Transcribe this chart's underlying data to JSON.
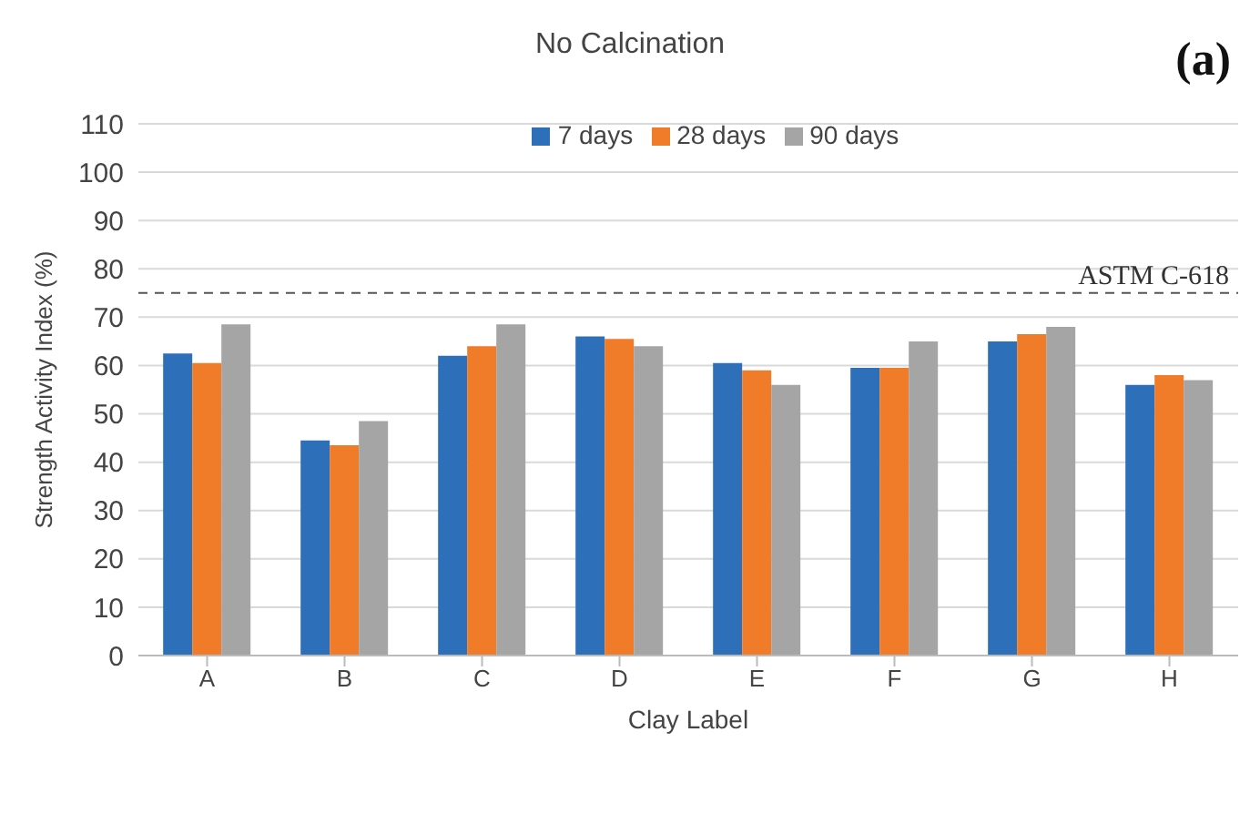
{
  "chart_data": {
    "type": "bar",
    "title": "No Calcination",
    "xlabel": "Clay Label",
    "ylabel": "Strength Activity Index (%)",
    "annotations": [
      "(a)"
    ],
    "categories": [
      "A",
      "B",
      "C",
      "D",
      "E",
      "F",
      "G",
      "H"
    ],
    "series": [
      {
        "name": "7 days",
        "color": "#2e6fba",
        "values": [
          62.5,
          44.5,
          62,
          66,
          60.5,
          59.5,
          65,
          56
        ]
      },
      {
        "name": "28 days",
        "color": "#f07c2a",
        "values": [
          60.5,
          43.5,
          64,
          65.5,
          59,
          59.5,
          66.5,
          58
        ]
      },
      {
        "name": "90 days",
        "color": "#a5a5a5",
        "values": [
          68.5,
          48.5,
          68.5,
          64,
          56,
          65,
          68,
          57
        ]
      }
    ],
    "ylim": [
      0,
      110
    ],
    "yticks": [
      0,
      10,
      20,
      30,
      40,
      50,
      60,
      70,
      80,
      90,
      100,
      110
    ],
    "ref_lines": [
      {
        "axis": "y",
        "value": 75,
        "label": "ASTM C-618",
        "color": "#555555",
        "line_style": "dashed"
      }
    ],
    "grid": "y",
    "legend": "top"
  }
}
